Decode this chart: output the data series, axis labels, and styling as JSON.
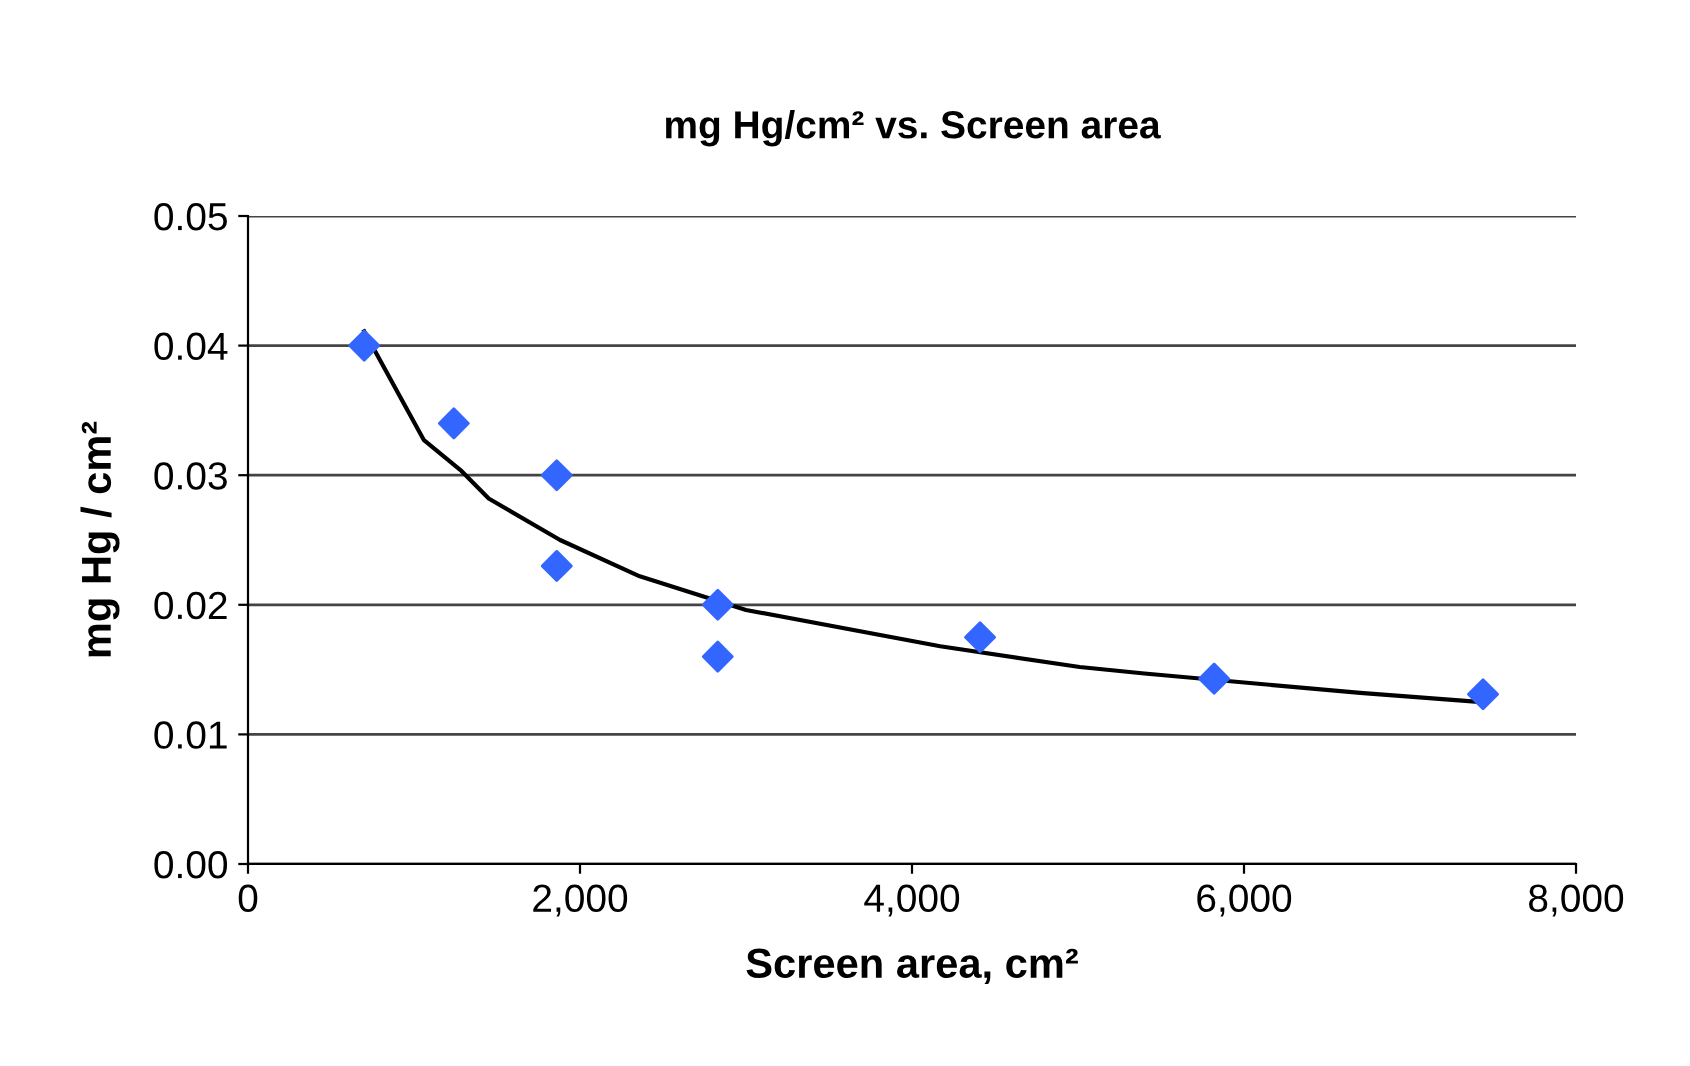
{
  "chart_data": {
    "type": "scatter",
    "title": "mg Hg/cm² vs. Screen area",
    "xlabel": "Screen area, cm²",
    "ylabel": "mg Hg / cm²",
    "series": [
      {
        "color": "#3366ff",
        "marker": "diamond",
        "x": [
          700,
          1240,
          1860,
          1860,
          2830,
          2830,
          4410,
          5820,
          7440
        ],
        "values": [
          0.04,
          0.034,
          0.03,
          0.023,
          0.02,
          0.016,
          0.0175,
          0.0143,
          0.0131
        ]
      },
      {
        "type": "line",
        "color": "#000000",
        "marker": "none",
        "line_style": "solid",
        "x": [
          700,
          1060,
          1280,
          1450,
          1880,
          2360,
          3000,
          4170,
          5010,
          5400,
          6700,
          7420
        ],
        "values": [
          0.0411,
          0.0327,
          0.0304,
          0.0282,
          0.025,
          0.0222,
          0.0196,
          0.0168,
          0.0152,
          0.0147,
          0.0132,
          0.0125
        ]
      }
    ],
    "xlim": [
      0,
      8000
    ],
    "xticks": [
      0,
      {
        "value": 2000,
        "label": "2,000"
      },
      {
        "value": 4000,
        "label": "4,000"
      },
      {
        "value": 6000,
        "label": "6,000"
      },
      {
        "value": 8000,
        "label": "8,000"
      }
    ],
    "ylim": [
      0,
      0.05
    ],
    "yticks": [
      {
        "value": 0,
        "label": "0.00"
      },
      {
        "value": 0.01,
        "label": "0.01"
      },
      {
        "value": 0.02,
        "label": "0.02"
      },
      {
        "value": 0.03,
        "label": "0.03"
      },
      {
        "value": 0.04,
        "label": "0.04"
      },
      {
        "value": 0.05,
        "label": "0.05"
      }
    ],
    "grid": "y",
    "legend": false
  }
}
